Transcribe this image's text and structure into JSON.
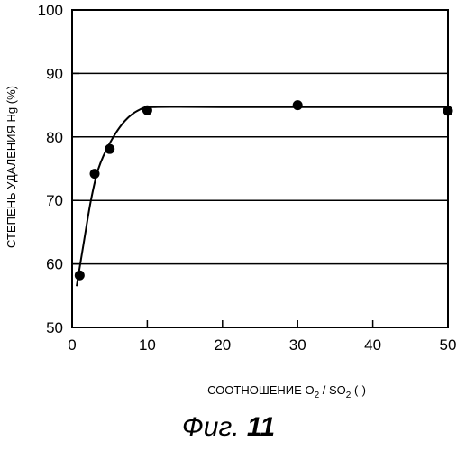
{
  "chart_data": {
    "type": "scatter",
    "xlabel": {
      "text": "СООТНОШЕНИЕ",
      "formula_parts": [
        {
          "t": "O",
          "sub": false
        },
        {
          "t": "2",
          "sub": true
        },
        {
          "t": " / ",
          "sub": false
        },
        {
          "t": "SO",
          "sub": false
        },
        {
          "t": "2",
          "sub": true
        }
      ],
      "unit": "(-)"
    },
    "ylabel": "СТЕПЕНЬ УДАЛЕНИЯ Hg (%)",
    "xlim": [
      0,
      50
    ],
    "ylim": [
      50,
      100
    ],
    "xticks": [
      0,
      10,
      20,
      30,
      40,
      50
    ],
    "yticks": [
      50,
      60,
      70,
      80,
      90,
      100
    ],
    "grid": "horizontal",
    "points": [
      {
        "x": 1,
        "y": 58.2
      },
      {
        "x": 3,
        "y": 74.2
      },
      {
        "x": 5,
        "y": 78.1
      },
      {
        "x": 10,
        "y": 84.2
      },
      {
        "x": 30,
        "y": 85.0
      },
      {
        "x": 50,
        "y": 84.1
      }
    ],
    "fit_curve": [
      {
        "x": 0.6,
        "y": 56.5
      },
      {
        "x": 1.5,
        "y": 63.0
      },
      {
        "x": 2.5,
        "y": 70.0
      },
      {
        "x": 3.5,
        "y": 75.0
      },
      {
        "x": 5,
        "y": 79.0
      },
      {
        "x": 7,
        "y": 82.5
      },
      {
        "x": 9,
        "y": 84.3
      },
      {
        "x": 11,
        "y": 84.7
      },
      {
        "x": 20,
        "y": 84.7
      },
      {
        "x": 50,
        "y": 84.7
      }
    ]
  },
  "caption": {
    "prefix": "Фиг.",
    "number": "11"
  }
}
